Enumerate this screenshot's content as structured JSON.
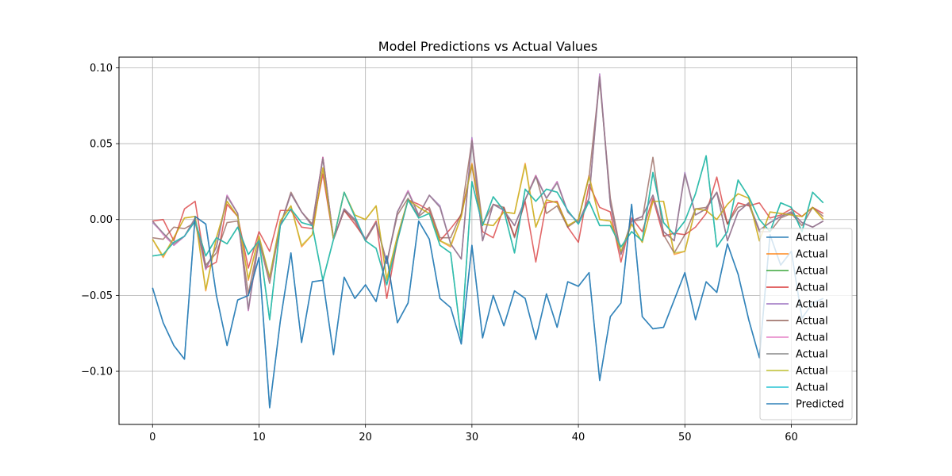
{
  "chart_data": {
    "type": "line",
    "title": "Model Predictions vs Actual Values",
    "xlabel": "",
    "ylabel": "",
    "xlim": [
      -3.15,
      66.15
    ],
    "ylim": [
      -0.135,
      0.107
    ],
    "xticks": [
      0,
      10,
      20,
      30,
      40,
      50,
      60
    ],
    "xtick_labels": [
      "0",
      "10",
      "20",
      "30",
      "40",
      "50",
      "60"
    ],
    "yticks": [
      -0.1,
      -0.05,
      0.0,
      0.05,
      0.1
    ],
    "ytick_labels": [
      "−0.10",
      "−0.05",
      "0.00",
      "0.05",
      "0.10"
    ],
    "grid": true,
    "legend_position": "lower-right",
    "series": [
      {
        "name": "Actual",
        "color": "#1f77b4",
        "values": [
          -0.045,
          -0.068,
          -0.083,
          -0.092,
          0.002,
          -0.003,
          -0.05,
          -0.083,
          -0.053,
          -0.05,
          -0.025,
          -0.124,
          -0.067,
          -0.022,
          -0.081,
          -0.041,
          -0.04,
          -0.089,
          -0.038,
          -0.052,
          -0.043,
          -0.054,
          -0.024,
          -0.068,
          -0.055,
          -0.001,
          -0.013,
          -0.052,
          -0.058,
          -0.082,
          -0.017,
          -0.078,
          -0.05,
          -0.07,
          -0.047,
          -0.052,
          -0.079,
          -0.049,
          -0.071,
          -0.041,
          -0.044,
          -0.035,
          -0.106,
          -0.064,
          -0.055,
          0.01,
          -0.064,
          -0.072,
          -0.071,
          -0.053,
          -0.035,
          -0.066,
          -0.041,
          -0.048,
          -0.016,
          -0.036,
          -0.066,
          -0.091,
          -0.01,
          -0.03,
          -0.021,
          -0.065,
          -0.055,
          -0.052
        ]
      },
      {
        "name": "Actual",
        "color": "#ff7f0e",
        "values": [
          -0.013,
          -0.025,
          -0.012,
          0.001,
          0.002,
          -0.047,
          -0.012,
          0.012,
          0.002,
          -0.04,
          -0.011,
          -0.039,
          -0.001,
          0.009,
          -0.018,
          -0.01,
          0.034,
          -0.013,
          0.018,
          0.003,
          -0.0,
          0.009,
          -0.04,
          -0.011,
          0.013,
          0.008,
          0.004,
          -0.014,
          -0.018,
          0.002,
          0.037,
          -0.003,
          -0.004,
          0.005,
          0.004,
          0.037,
          -0.005,
          0.013,
          0.011,
          -0.004,
          0.0,
          0.029,
          0.0,
          -0.001,
          -0.022,
          -0.003,
          -0.015,
          0.012,
          0.012,
          -0.023,
          -0.021,
          0.007,
          0.006,
          0.0,
          0.01,
          0.017,
          0.014,
          -0.014,
          0.005,
          0.004,
          0.003,
          0.002,
          0.008,
          0.0
        ]
      },
      {
        "name": "Actual",
        "color": "#2ca02c",
        "values": [
          -0.024,
          -0.023,
          -0.015,
          -0.011,
          -0.001,
          -0.024,
          -0.012,
          -0.016,
          -0.005,
          -0.023,
          -0.014,
          -0.066,
          -0.004,
          0.007,
          -0.002,
          -0.004,
          -0.04,
          -0.013,
          0.018,
          0.002,
          -0.014,
          -0.019,
          -0.043,
          -0.014,
          0.013,
          0.001,
          0.004,
          -0.017,
          -0.022,
          -0.079,
          0.025,
          -0.004,
          0.015,
          0.006,
          -0.022,
          0.02,
          0.012,
          0.02,
          0.018,
          0.006,
          -0.003,
          0.012,
          -0.004,
          -0.004,
          -0.018,
          -0.008,
          -0.014,
          0.031,
          -0.002,
          -0.01,
          -0.001,
          0.017,
          0.042,
          -0.018,
          -0.008,
          0.026,
          0.015,
          0.0,
          -0.008,
          0.011,
          0.008,
          -0.008,
          0.018,
          0.011
        ]
      },
      {
        "name": "Actual",
        "color": "#d62728",
        "values": [
          -0.001,
          0.0,
          -0.014,
          0.007,
          0.012,
          -0.032,
          -0.028,
          0.01,
          0.002,
          -0.032,
          -0.008,
          -0.021,
          0.006,
          0.006,
          -0.005,
          -0.006,
          0.03,
          -0.013,
          0.006,
          -0.003,
          -0.013,
          -0.001,
          -0.052,
          -0.013,
          0.013,
          0.01,
          0.006,
          -0.014,
          -0.006,
          0.003,
          0.036,
          -0.008,
          -0.012,
          0.008,
          -0.011,
          0.012,
          -0.028,
          0.011,
          0.012,
          -0.005,
          -0.015,
          0.023,
          0.008,
          0.005,
          -0.028,
          0.001,
          -0.008,
          0.014,
          -0.011,
          -0.009,
          -0.01,
          -0.005,
          0.004,
          0.028,
          -0.003,
          0.011,
          0.009,
          0.011,
          0.001,
          0.003,
          0.007,
          0.002,
          0.008,
          0.004
        ]
      },
      {
        "name": "Actual",
        "color": "#9467bd",
        "values": [
          -0.002,
          -0.009,
          -0.017,
          -0.011,
          0.0,
          -0.033,
          -0.018,
          0.016,
          0.004,
          -0.06,
          -0.013,
          -0.039,
          -0.004,
          0.017,
          0.005,
          -0.004,
          0.041,
          -0.013,
          0.007,
          0.0,
          -0.013,
          -0.002,
          -0.029,
          0.005,
          0.019,
          0.003,
          0.016,
          0.009,
          -0.016,
          -0.026,
          0.054,
          -0.014,
          0.01,
          0.006,
          -0.004,
          0.013,
          0.029,
          0.014,
          0.025,
          0.005,
          -0.002,
          0.014,
          0.096,
          0.01,
          -0.023,
          -0.001,
          0.002,
          0.016,
          -0.008,
          -0.014,
          0.031,
          0.003,
          0.007,
          0.018,
          -0.014,
          0.005,
          0.011,
          -0.007,
          -0.002,
          0.002,
          0.005,
          -0.002,
          -0.005,
          -0.001
        ]
      },
      {
        "name": "Actual",
        "color": "#8c564b",
        "values": [
          -0.012,
          -0.013,
          -0.005,
          -0.006,
          -0.002,
          -0.03,
          -0.022,
          -0.002,
          -0.001,
          -0.049,
          -0.014,
          -0.042,
          -0.004,
          0.018,
          0.005,
          -0.003,
          0.041,
          -0.013,
          0.006,
          -0.001,
          -0.014,
          -0.002,
          -0.028,
          0.003,
          0.014,
          0.002,
          0.008,
          -0.012,
          -0.012,
          0.004,
          0.052,
          -0.003,
          0.01,
          0.008,
          -0.012,
          0.013,
          0.029,
          0.004,
          0.009,
          -0.005,
          0.0,
          0.028,
          0.092,
          0.014,
          -0.022,
          -0.001,
          0.0,
          0.041,
          -0.01,
          -0.022,
          -0.01,
          0.007,
          0.008,
          0.018,
          -0.003,
          0.008,
          0.01,
          -0.008,
          -0.008,
          0.001,
          0.004,
          -0.004,
          0.008,
          0.002
        ]
      },
      {
        "name": "Actual",
        "color": "#e377c2",
        "values": [
          -0.001,
          -0.01,
          -0.017,
          -0.011,
          0.001,
          -0.033,
          -0.018,
          0.016,
          0.004,
          -0.06,
          -0.013,
          -0.039,
          -0.004,
          0.017,
          0.005,
          -0.004,
          0.041,
          -0.013,
          0.007,
          0.0,
          -0.013,
          -0.002,
          -0.029,
          0.005,
          0.019,
          0.003,
          0.016,
          0.008,
          -0.016,
          -0.026,
          0.053,
          -0.014,
          0.01,
          0.006,
          -0.004,
          0.013,
          0.029,
          0.014,
          0.025,
          0.005,
          -0.002,
          0.014,
          0.095,
          0.01,
          -0.023,
          -0.001,
          0.002,
          0.016,
          -0.008,
          -0.014,
          0.03,
          0.003,
          0.007,
          0.018,
          -0.014,
          0.005,
          0.011,
          -0.007,
          -0.002,
          0.002,
          0.005,
          -0.002,
          -0.005,
          -0.001
        ]
      },
      {
        "name": "Actual",
        "color": "#7f7f7f",
        "values": [
          -0.001,
          -0.009,
          -0.016,
          -0.011,
          0.001,
          -0.032,
          -0.018,
          0.015,
          0.004,
          -0.059,
          -0.013,
          -0.038,
          -0.004,
          0.017,
          0.005,
          -0.004,
          0.04,
          -0.013,
          0.007,
          0.0,
          -0.013,
          -0.002,
          -0.029,
          0.005,
          0.018,
          0.003,
          0.016,
          0.008,
          -0.016,
          -0.026,
          0.052,
          -0.014,
          0.01,
          0.006,
          -0.004,
          0.013,
          0.028,
          0.014,
          0.024,
          0.005,
          -0.002,
          0.014,
          0.094,
          0.01,
          -0.023,
          -0.001,
          0.002,
          0.016,
          -0.008,
          -0.014,
          0.03,
          0.003,
          0.007,
          0.018,
          -0.014,
          0.005,
          0.011,
          -0.007,
          -0.002,
          0.002,
          0.005,
          -0.002,
          -0.005,
          -0.001
        ]
      },
      {
        "name": "Actual",
        "color": "#bcbd22",
        "values": [
          -0.013,
          -0.024,
          -0.012,
          0.001,
          0.002,
          -0.046,
          -0.012,
          0.012,
          0.002,
          -0.039,
          -0.011,
          -0.038,
          -0.001,
          0.009,
          -0.017,
          -0.01,
          0.034,
          -0.013,
          0.018,
          0.003,
          -0.0,
          0.009,
          -0.039,
          -0.011,
          0.013,
          0.008,
          0.004,
          -0.014,
          -0.017,
          0.002,
          0.036,
          -0.003,
          -0.004,
          0.005,
          0.004,
          0.036,
          -0.005,
          0.013,
          0.011,
          -0.004,
          0.0,
          0.028,
          0.0,
          -0.001,
          -0.021,
          -0.003,
          -0.015,
          0.012,
          0.012,
          -0.022,
          -0.021,
          0.007,
          0.006,
          0.0,
          0.01,
          0.017,
          0.014,
          -0.014,
          0.005,
          0.004,
          0.003,
          0.002,
          0.008,
          0.0
        ]
      },
      {
        "name": "Actual",
        "color": "#17becf",
        "values": [
          -0.024,
          -0.023,
          -0.015,
          -0.011,
          -0.001,
          -0.024,
          -0.012,
          -0.016,
          -0.005,
          -0.023,
          -0.014,
          -0.066,
          -0.004,
          0.007,
          -0.002,
          -0.004,
          -0.04,
          -0.013,
          0.018,
          0.002,
          -0.014,
          -0.019,
          -0.043,
          -0.014,
          0.013,
          0.001,
          0.004,
          -0.017,
          -0.022,
          -0.079,
          0.025,
          -0.004,
          0.015,
          0.006,
          -0.022,
          0.02,
          0.012,
          0.02,
          0.018,
          0.006,
          -0.003,
          0.012,
          -0.004,
          -0.004,
          -0.018,
          -0.008,
          -0.014,
          0.031,
          -0.002,
          -0.01,
          -0.001,
          0.017,
          0.042,
          -0.018,
          -0.008,
          0.026,
          0.015,
          0.0,
          -0.008,
          0.011,
          0.008,
          -0.008,
          0.018,
          0.011
        ]
      },
      {
        "name": "Predicted",
        "color": "#1f77b4",
        "values": [
          -0.045,
          -0.068,
          -0.083,
          -0.092,
          0.002,
          -0.003,
          -0.05,
          -0.083,
          -0.053,
          -0.05,
          -0.025,
          -0.124,
          -0.067,
          -0.022,
          -0.081,
          -0.041,
          -0.04,
          -0.089,
          -0.038,
          -0.052,
          -0.043,
          -0.054,
          -0.024,
          -0.068,
          -0.055,
          -0.001,
          -0.013,
          -0.052,
          -0.058,
          -0.082,
          -0.017,
          -0.078,
          -0.05,
          -0.07,
          -0.047,
          -0.052,
          -0.079,
          -0.049,
          -0.071,
          -0.041,
          -0.044,
          -0.035,
          -0.106,
          -0.064,
          -0.055,
          0.01,
          -0.064,
          -0.072,
          -0.071,
          -0.053,
          -0.035,
          -0.066,
          -0.041,
          -0.048,
          -0.016,
          -0.036,
          -0.066,
          -0.091,
          -0.01,
          -0.03,
          -0.021,
          -0.065,
          -0.055,
          -0.052
        ]
      }
    ]
  }
}
